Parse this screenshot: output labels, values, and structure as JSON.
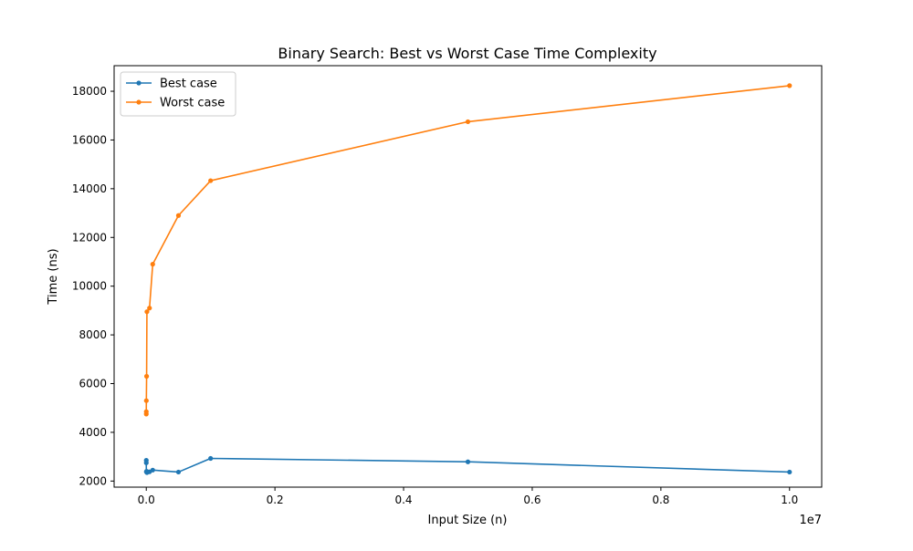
{
  "chart_data": {
    "type": "line",
    "title": "Binary Search: Best vs Worst Case Time Complexity",
    "xlabel": "Input Size (n)",
    "ylabel": "Time (ns)",
    "x_offset_label": "1e7",
    "x_scale": 10000000,
    "xlim": [
      -500000,
      10500000
    ],
    "ylim": [
      1750,
      19050
    ],
    "x_ticks": [
      0,
      2000000,
      4000000,
      6000000,
      8000000,
      10000000
    ],
    "x_tick_labels": [
      "0.0",
      "0.2",
      "0.4",
      "0.6",
      "0.8",
      "1.0"
    ],
    "y_ticks": [
      2000,
      4000,
      6000,
      8000,
      10000,
      12000,
      14000,
      16000,
      18000
    ],
    "y_tick_labels": [
      "2000",
      "4000",
      "6000",
      "8000",
      "10000",
      "12000",
      "14000",
      "16000",
      "18000"
    ],
    "grid": false,
    "legend_position": "top-left",
    "x": [
      10,
      100,
      1000,
      5000,
      10000,
      50000,
      100000,
      500000,
      1000000,
      5000000,
      10000000
    ],
    "series": [
      {
        "name": "Best case",
        "color": "#1f77b4",
        "values": [
          2850,
          2750,
          2380,
          2400,
          2350,
          2380,
          2450,
          2370,
          2930,
          2790,
          2370
        ]
      },
      {
        "name": "Worst case",
        "color": "#ff7f0e",
        "values": [
          4750,
          4850,
          5300,
          6300,
          8950,
          9100,
          10900,
          12900,
          14330,
          16750,
          18230
        ]
      }
    ]
  }
}
